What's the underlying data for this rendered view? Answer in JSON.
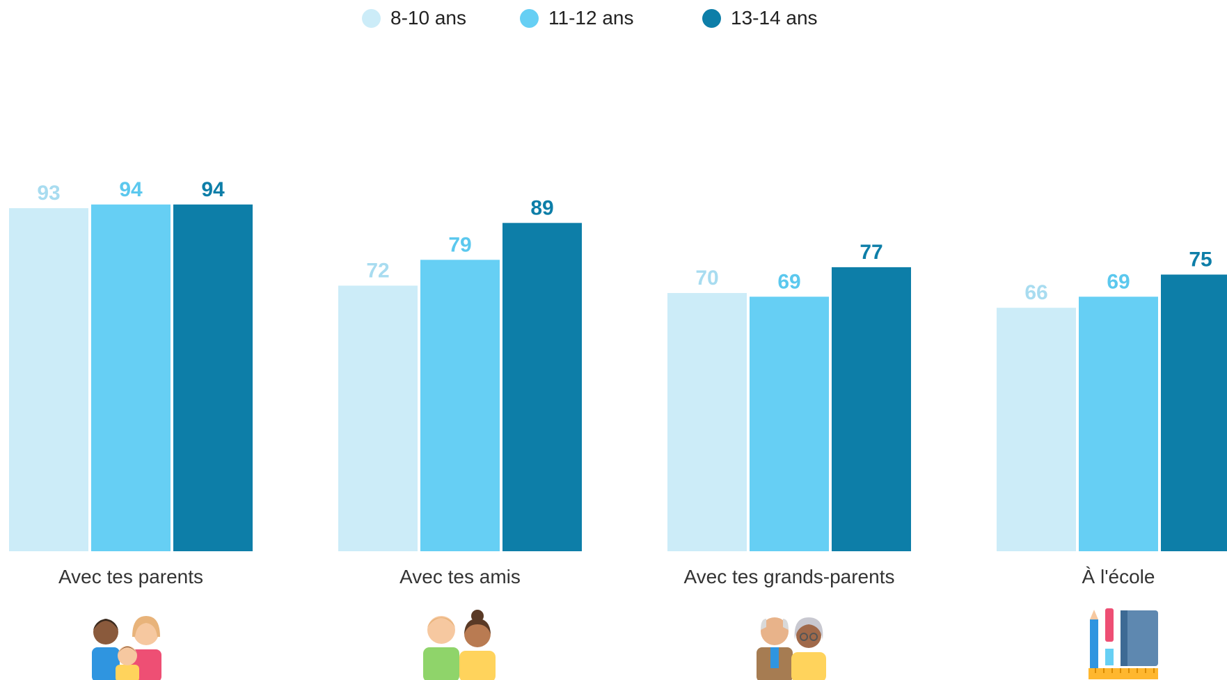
{
  "legend": [
    {
      "label": "8-10 ans",
      "color": "#ccecf8"
    },
    {
      "label": "11-12 ans",
      "color": "#66cff4"
    },
    {
      "label": "13-14 ans",
      "color": "#0d7ea8"
    }
  ],
  "icons": [
    "family-icon",
    "friends-icon",
    "grandparents-icon",
    "school-supplies-icon"
  ],
  "chart_data": {
    "type": "bar",
    "categories": [
      "Avec tes parents",
      "Avec tes amis",
      "Avec tes grands-parents",
      "À l'école"
    ],
    "series": [
      {
        "name": "8-10 ans",
        "values": [
          93,
          72,
          70,
          66
        ],
        "color": "#ccecf8",
        "label_color": "#a8dcf0"
      },
      {
        "name": "11-12 ans",
        "values": [
          94,
          79,
          69,
          69
        ],
        "color": "#66cff4",
        "label_color": "#5bc8ee"
      },
      {
        "name": "13-14 ans",
        "values": [
          94,
          89,
          77,
          75
        ],
        "color": "#0d7ea8",
        "label_color": "#0d7ea8"
      }
    ],
    "ylim": [
      0,
      100
    ],
    "grid": false,
    "legend_position": "top-center"
  }
}
